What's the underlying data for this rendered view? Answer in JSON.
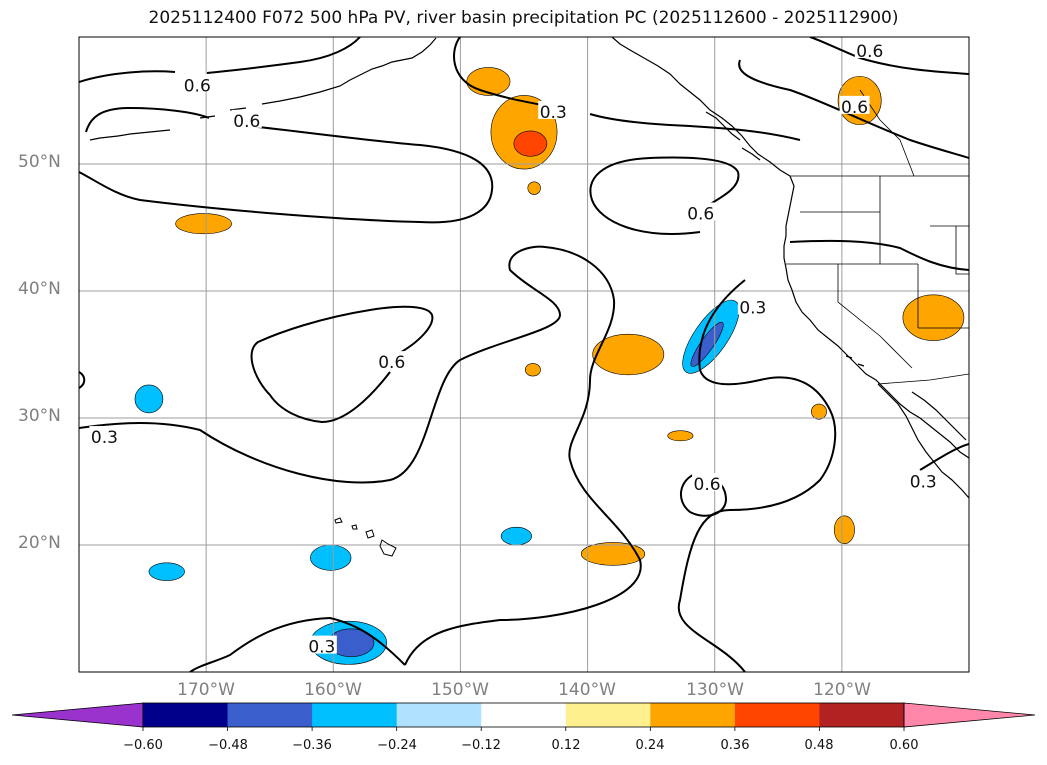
{
  "title": "2025112400 F072 500 hPa PV, river basin precipitation PC (2025112600 - 2025112900)",
  "map": {
    "projection": "plate-carree",
    "lon_range": [
      -180,
      -110
    ],
    "lat_range": [
      10,
      60
    ],
    "lat_ticks": [
      {
        "value": 50,
        "label": "50°N"
      },
      {
        "value": 40,
        "label": "40°N"
      },
      {
        "value": 30,
        "label": "30°N"
      },
      {
        "value": 20,
        "label": "20°N"
      }
    ],
    "lon_ticks": [
      {
        "value": -170,
        "label": "170°W"
      },
      {
        "value": -160,
        "label": "160°W"
      },
      {
        "value": -150,
        "label": "150°W"
      },
      {
        "value": -140,
        "label": "140°W"
      },
      {
        "value": -130,
        "label": "130°W"
      },
      {
        "value": -120,
        "label": "120°W"
      }
    ],
    "gridlines": true,
    "land_color": "#ffffff",
    "coastline_color": "#000000"
  },
  "pv_contours": {
    "variable": "500 hPa PV",
    "line_color": "#000000",
    "levels": [
      "0.3",
      "0.6"
    ],
    "labels": [
      {
        "text": "0.6",
        "lon": -170.7,
        "lat": 56.2
      },
      {
        "text": "0.6",
        "lon": -166.8,
        "lat": 53.4
      },
      {
        "text": "0.3",
        "lon": -142.7,
        "lat": 54.1
      },
      {
        "text": "0.6",
        "lon": -117.8,
        "lat": 58.9
      },
      {
        "text": "0.6",
        "lon": -119.0,
        "lat": 54.5
      },
      {
        "text": "0.6",
        "lon": -131.1,
        "lat": 46.1
      },
      {
        "text": "0.3",
        "lon": -127.0,
        "lat": 38.7
      },
      {
        "text": "0.6",
        "lon": -155.4,
        "lat": 34.4
      },
      {
        "text": "0.3",
        "lon": -178.0,
        "lat": 28.5
      },
      {
        "text": "0.6",
        "lon": -130.6,
        "lat": 24.8
      },
      {
        "text": "0.3",
        "lon": -113.6,
        "lat": 25.0
      },
      {
        "text": "0.3",
        "lon": -160.9,
        "lat": 12.0
      }
    ]
  },
  "precip_pc": {
    "variable": "river basin precipitation PC",
    "period": "2025112600 - 2025112900",
    "colorbar": {
      "extend": "both",
      "under_color": "#9a32cd",
      "over_color": "#ff88aa",
      "bins": [
        {
          "from": -0.6,
          "to": -0.48,
          "color": "#00008b"
        },
        {
          "from": -0.48,
          "to": -0.36,
          "color": "#3a5fcd"
        },
        {
          "from": -0.36,
          "to": -0.24,
          "color": "#00bfff"
        },
        {
          "from": -0.24,
          "to": -0.12,
          "color": "#b0e2ff"
        },
        {
          "from": -0.12,
          "to": 0.12,
          "color": "#ffffff"
        },
        {
          "from": 0.12,
          "to": 0.24,
          "color": "#fff08f"
        },
        {
          "from": 0.24,
          "to": 0.36,
          "color": "#ffa500"
        },
        {
          "from": 0.36,
          "to": 0.48,
          "color": "#ff4500"
        },
        {
          "from": 0.48,
          "to": 0.6,
          "color": "#b22222"
        },
        {
          "from": 0.6,
          "to": 0.72,
          "color": "#ff88aa"
        }
      ],
      "tick_labels": [
        "−0.60",
        "−0.48",
        "−0.36",
        "−0.24",
        "−0.12",
        "0.12",
        "0.24",
        "0.36",
        "0.48",
        "0.60"
      ]
    },
    "patches": [
      {
        "name": "orange-patch-gulf-alaska",
        "class": "0.24-0.36",
        "center": [
          -145.0,
          52.5
        ],
        "radius_deg": [
          2.6,
          2.9
        ]
      },
      {
        "name": "red-patch-gulf-alaska",
        "class": "0.36-0.48",
        "center": [
          -144.5,
          51.6
        ],
        "radius_deg": [
          1.3,
          1.0
        ]
      },
      {
        "name": "orange-patch-north-pacific",
        "class": "0.24-0.36",
        "center": [
          -147.8,
          56.5
        ],
        "radius_deg": [
          1.7,
          1.1
        ]
      },
      {
        "name": "orange-patch-bc",
        "class": "0.24-0.36",
        "center": [
          -118.6,
          55.0
        ],
        "radius_deg": [
          1.7,
          1.9
        ]
      },
      {
        "name": "orange-patch-west-pacific",
        "class": "0.24-0.36",
        "center": [
          -170.2,
          45.3
        ],
        "radius_deg": [
          2.2,
          0.8
        ]
      },
      {
        "name": "orange-patch-small-52n",
        "class": "0.24-0.36",
        "center": [
          -144.2,
          48.1
        ],
        "radius_deg": [
          0.5,
          0.5
        ]
      },
      {
        "name": "orange-patch-nevada",
        "class": "0.24-0.36",
        "center": [
          -112.8,
          37.9
        ],
        "radius_deg": [
          2.4,
          1.8
        ]
      },
      {
        "name": "orange-patch-central-pacific",
        "class": "0.24-0.36",
        "center": [
          -136.8,
          35.0
        ],
        "radius_deg": [
          2.8,
          1.6
        ]
      },
      {
        "name": "orange-patch-small-34n",
        "class": "0.24-0.36",
        "center": [
          -144.3,
          33.8
        ],
        "radius_deg": [
          0.6,
          0.5
        ]
      },
      {
        "name": "orange-patch-baja-offshore",
        "class": "0.24-0.36",
        "center": [
          -121.8,
          30.5
        ],
        "radius_deg": [
          0.6,
          0.6
        ]
      },
      {
        "name": "orange-patch-29n",
        "class": "0.24-0.36",
        "center": [
          -132.7,
          28.6
        ],
        "radius_deg": [
          1.0,
          0.4
        ]
      },
      {
        "name": "orange-patch-subtropical",
        "class": "0.24-0.36",
        "center": [
          -138.0,
          19.3
        ],
        "radius_deg": [
          2.5,
          0.9
        ]
      },
      {
        "name": "orange-patch-20n-east",
        "class": "0.24-0.36",
        "center": [
          -119.8,
          21.2
        ],
        "radius_deg": [
          0.8,
          1.1
        ]
      },
      {
        "name": "blue-patch-offshore-california",
        "class": "-0.36--0.24",
        "center": [
          -130.3,
          36.4
        ],
        "radius_deg": [
          1.3,
          3.4
        ],
        "rotate": 35
      },
      {
        "name": "darkblue-patch-offshore-california",
        "class": "-0.48--0.36",
        "center": [
          -130.6,
          35.8
        ],
        "radius_deg": [
          0.5,
          2.1
        ],
        "rotate": 35
      },
      {
        "name": "blue-patch-west-31n",
        "class": "-0.36--0.24",
        "center": [
          -174.5,
          31.5
        ],
        "radius_deg": [
          1.1,
          1.1
        ]
      },
      {
        "name": "blue-patch-20n-west",
        "class": "-0.36--0.24",
        "center": [
          -160.2,
          19.0
        ],
        "radius_deg": [
          1.6,
          1.0
        ]
      },
      {
        "name": "blue-patch-18n",
        "class": "-0.36--0.24",
        "center": [
          -173.1,
          17.9
        ],
        "radius_deg": [
          1.4,
          0.7
        ]
      },
      {
        "name": "blue-patch-21n-central",
        "class": "-0.36--0.24",
        "center": [
          -145.6,
          20.7
        ],
        "radius_deg": [
          1.2,
          0.7
        ]
      },
      {
        "name": "blue-patch-south",
        "class": "-0.36--0.24",
        "center": [
          -158.8,
          12.3
        ],
        "radius_deg": [
          3.0,
          1.7
        ]
      },
      {
        "name": "darkblue-patch-south",
        "class": "-0.48--0.36",
        "center": [
          -158.6,
          12.3
        ],
        "radius_deg": [
          1.8,
          1.1
        ]
      }
    ]
  }
}
